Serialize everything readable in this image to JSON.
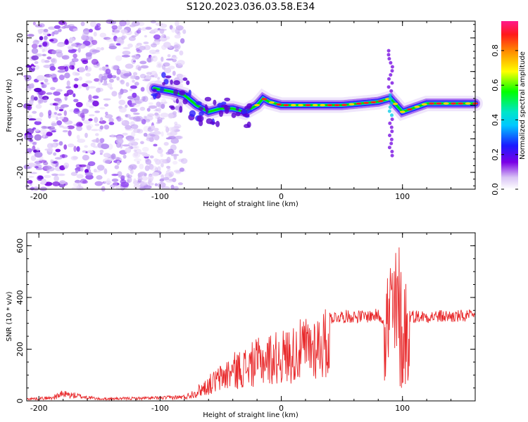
{
  "title": "S120.2023.036.03.58.E34",
  "chart_data": [
    {
      "type": "heatmap",
      "xlabel": "Height of straight line (km)",
      "ylabel": "Frequency (Hz)",
      "xlim": [
        -210,
        160
      ],
      "ylim": [
        -25,
        25
      ],
      "x_ticks": [
        -200,
        -100,
        0,
        100
      ],
      "y_ticks": [
        -20,
        -10,
        0,
        10,
        20
      ],
      "colorbar": {
        "label": "Normalized spectral amplitude",
        "range": [
          0.0,
          0.97
        ],
        "ticks": [
          0.0,
          0.2,
          0.4,
          0.6,
          0.8
        ],
        "tick_labels": [
          "0.0",
          "0.2",
          "0.4",
          "0.6",
          "0.8"
        ],
        "colormap": "rainbow (white - purple - blue - cyan - green - yellow - red - magenta)"
      },
      "features": {
        "noise_region_x": [
          -210,
          -80
        ],
        "ridge": {
          "x": [
            -105,
            -90,
            -80,
            -70,
            -60,
            -50,
            -40,
            -30,
            -20,
            -15,
            -10,
            0,
            20,
            50,
            80,
            90,
            95,
            100,
            120,
            160
          ],
          "y": [
            5,
            4,
            3,
            0,
            -2,
            -1,
            -1,
            -2,
            0,
            2,
            1,
            0,
            0,
            0,
            1,
            2,
            0,
            -2,
            0.5,
            0.5
          ]
        },
        "spike_x": 90,
        "spike_y_range": [
          -15,
          17
        ]
      }
    },
    {
      "type": "line",
      "xlabel": "Height of straight line (km)",
      "ylabel": "SNR (10 * v/v)",
      "xlim": [
        -210,
        160
      ],
      "ylim": [
        0,
        650
      ],
      "x_ticks": [
        -200,
        -100,
        0,
        100
      ],
      "y_ticks": [
        0,
        200,
        400,
        600
      ],
      "series": [
        {
          "color": "#e8282a",
          "envelope_x": [
            -210,
            -190,
            -180,
            -150,
            -100,
            -80,
            -70,
            -60,
            -50,
            -40,
            -30,
            -20,
            -10,
            0,
            10,
            20,
            30,
            40,
            50,
            60,
            70,
            80,
            85,
            88,
            92,
            95,
            98,
            100,
            102,
            105,
            110,
            120,
            140,
            160
          ],
          "envelope_y": [
            10,
            15,
            35,
            10,
            15,
            20,
            50,
            90,
            130,
            170,
            190,
            220,
            240,
            250,
            270,
            300,
            320,
            330,
            335,
            335,
            335,
            340,
            320,
            560,
            600,
            560,
            620,
            340,
            560,
            340,
            335,
            335,
            335,
            335
          ]
        }
      ]
    }
  ]
}
